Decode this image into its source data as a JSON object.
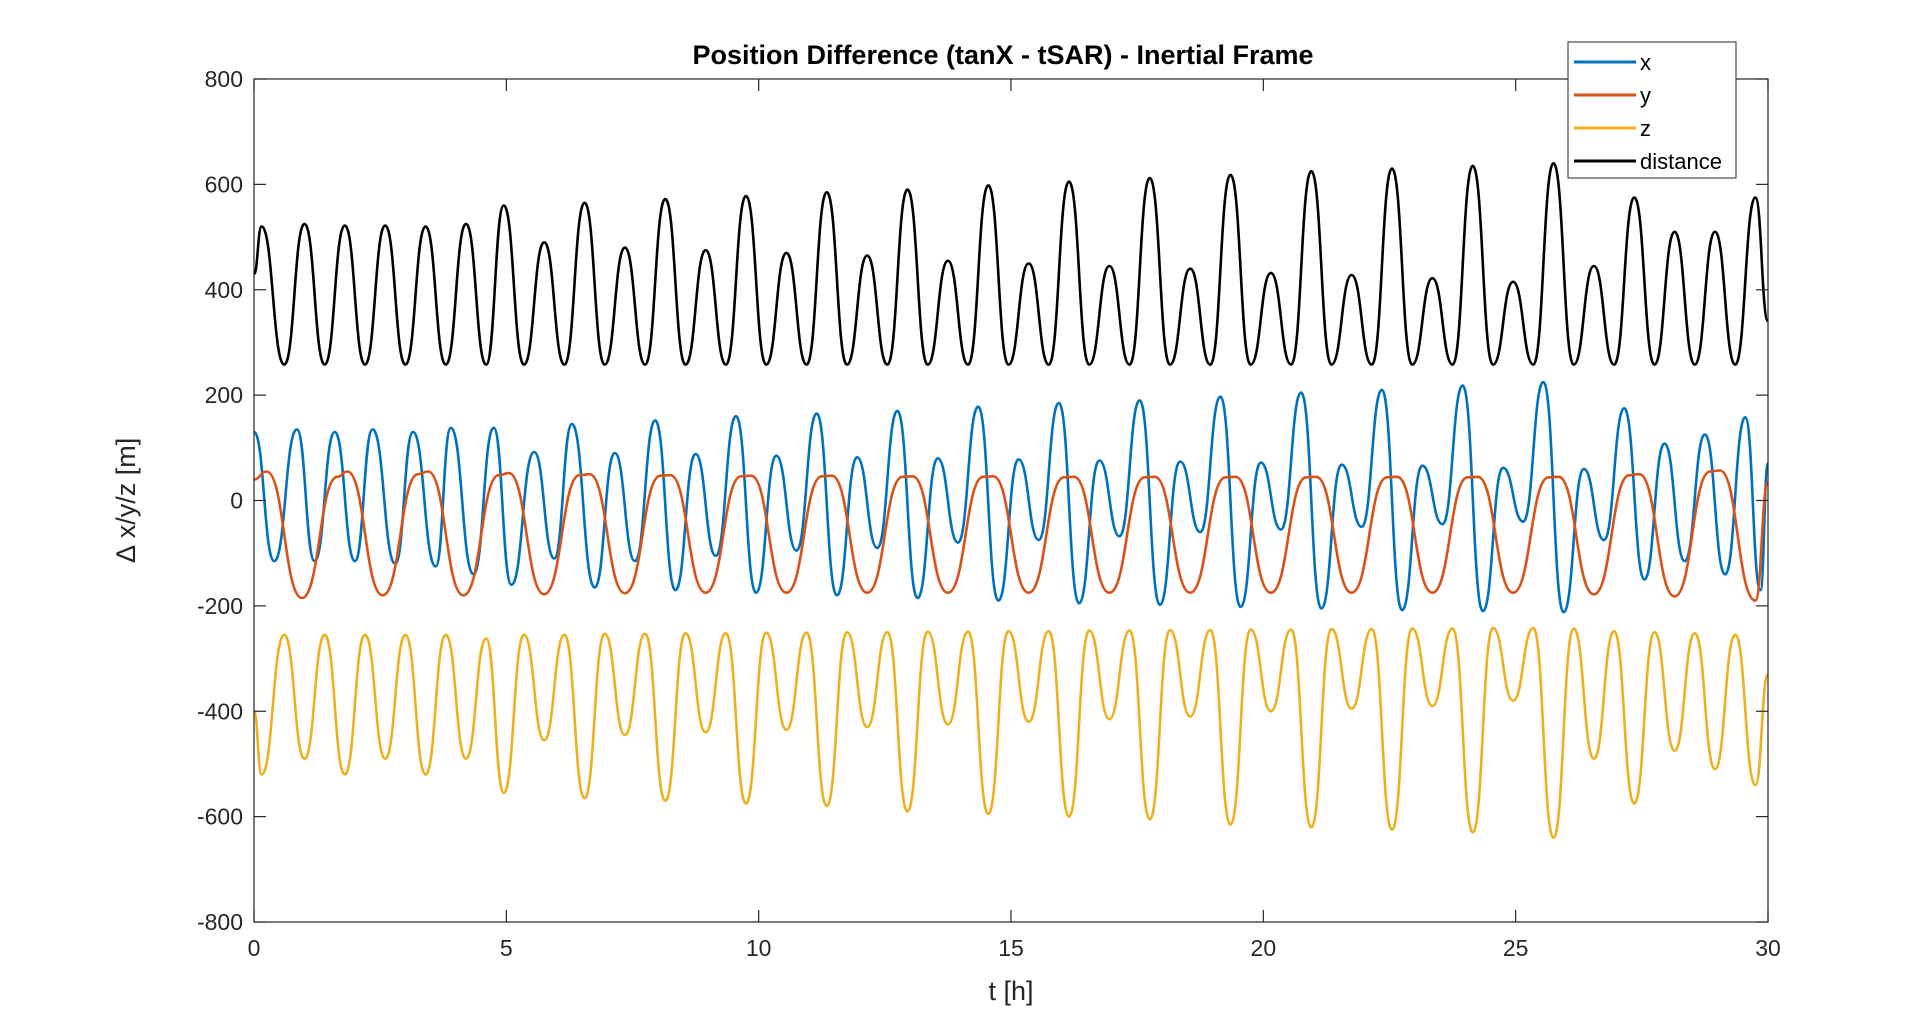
{
  "chart_data": {
    "type": "line",
    "title": "Position Difference (tanX - tSAR) - Inertial Frame",
    "xlabel": "t [h]",
    "ylabel": "∆ x/y/z [m]",
    "xlim": [
      0,
      30
    ],
    "ylim": [
      -800,
      800
    ],
    "x_ticks": [
      0,
      5,
      10,
      15,
      20,
      25,
      30
    ],
    "y_ticks": [
      -800,
      -600,
      -400,
      -200,
      0,
      200,
      400,
      600,
      800
    ],
    "grid": false,
    "legend_position": "top-right",
    "series": [
      {
        "name": "x",
        "color": "#0072BD",
        "points": [
          [
            0.0,
            130
          ],
          [
            0.4,
            -115
          ],
          [
            0.85,
            135
          ],
          [
            1.2,
            -115
          ],
          [
            1.6,
            130
          ],
          [
            2.0,
            -115
          ],
          [
            2.35,
            135
          ],
          [
            2.8,
            -120
          ],
          [
            3.15,
            130
          ],
          [
            3.6,
            -125
          ],
          [
            3.9,
            138
          ],
          [
            4.35,
            -140
          ],
          [
            4.75,
            138
          ],
          [
            5.1,
            -160
          ],
          [
            5.55,
            92
          ],
          [
            5.95,
            -110
          ],
          [
            6.3,
            145
          ],
          [
            6.75,
            -165
          ],
          [
            7.15,
            90
          ],
          [
            7.55,
            -115
          ],
          [
            7.95,
            152
          ],
          [
            8.35,
            -170
          ],
          [
            8.75,
            88
          ],
          [
            9.15,
            -105
          ],
          [
            9.55,
            160
          ],
          [
            9.95,
            -175
          ],
          [
            10.35,
            85
          ],
          [
            10.75,
            -95
          ],
          [
            11.15,
            165
          ],
          [
            11.55,
            -180
          ],
          [
            11.95,
            82
          ],
          [
            12.35,
            -90
          ],
          [
            12.75,
            170
          ],
          [
            13.15,
            -185
          ],
          [
            13.55,
            80
          ],
          [
            13.95,
            -80
          ],
          [
            14.35,
            178
          ],
          [
            14.75,
            -190
          ],
          [
            15.15,
            78
          ],
          [
            15.55,
            -75
          ],
          [
            15.95,
            185
          ],
          [
            16.35,
            -195
          ],
          [
            16.75,
            76
          ],
          [
            17.15,
            -68
          ],
          [
            17.55,
            190
          ],
          [
            17.95,
            -198
          ],
          [
            18.35,
            74
          ],
          [
            18.75,
            -60
          ],
          [
            19.15,
            197
          ],
          [
            19.55,
            -202
          ],
          [
            19.95,
            72
          ],
          [
            20.35,
            -55
          ],
          [
            20.75,
            205
          ],
          [
            21.15,
            -205
          ],
          [
            21.55,
            68
          ],
          [
            21.95,
            -50
          ],
          [
            22.35,
            210
          ],
          [
            22.75,
            -208
          ],
          [
            23.15,
            66
          ],
          [
            23.55,
            -45
          ],
          [
            23.95,
            218
          ],
          [
            24.35,
            -210
          ],
          [
            24.75,
            62
          ],
          [
            25.15,
            -40
          ],
          [
            25.55,
            225
          ],
          [
            25.95,
            -212
          ],
          [
            26.35,
            60
          ],
          [
            26.75,
            -75
          ],
          [
            27.15,
            175
          ],
          [
            27.55,
            -150
          ],
          [
            27.95,
            108
          ],
          [
            28.35,
            -115
          ],
          [
            28.75,
            125
          ],
          [
            29.15,
            -140
          ],
          [
            29.55,
            158
          ],
          [
            29.85,
            -170
          ],
          [
            30.0,
            70
          ]
        ]
      },
      {
        "name": "y",
        "color": "#D95319",
        "points": [
          [
            0.0,
            40
          ],
          [
            0.25,
            55
          ],
          [
            0.95,
            -185
          ],
          [
            1.65,
            45
          ],
          [
            1.85,
            55
          ],
          [
            2.55,
            -180
          ],
          [
            3.25,
            50
          ],
          [
            3.45,
            55
          ],
          [
            4.15,
            -180
          ],
          [
            4.85,
            48
          ],
          [
            5.05,
            52
          ],
          [
            5.75,
            -178
          ],
          [
            6.45,
            48
          ],
          [
            6.65,
            50
          ],
          [
            7.35,
            -176
          ],
          [
            8.05,
            47
          ],
          [
            8.25,
            48
          ],
          [
            8.95,
            -175
          ],
          [
            9.65,
            46
          ],
          [
            9.85,
            47
          ],
          [
            10.55,
            -175
          ],
          [
            11.25,
            46
          ],
          [
            11.45,
            47
          ],
          [
            12.15,
            -175
          ],
          [
            12.85,
            45
          ],
          [
            13.05,
            46
          ],
          [
            13.75,
            -175
          ],
          [
            14.45,
            45
          ],
          [
            14.65,
            46
          ],
          [
            15.35,
            -175
          ],
          [
            16.05,
            44
          ],
          [
            16.25,
            45
          ],
          [
            16.95,
            -175
          ],
          [
            17.65,
            44
          ],
          [
            17.85,
            45
          ],
          [
            18.55,
            -175
          ],
          [
            19.25,
            44
          ],
          [
            19.45,
            45
          ],
          [
            20.15,
            -175
          ],
          [
            20.85,
            44
          ],
          [
            21.05,
            45
          ],
          [
            21.75,
            -175
          ],
          [
            22.45,
            44
          ],
          [
            22.65,
            45
          ],
          [
            23.35,
            -175
          ],
          [
            24.05,
            44
          ],
          [
            24.25,
            45
          ],
          [
            24.95,
            -175
          ],
          [
            25.65,
            44
          ],
          [
            25.85,
            45
          ],
          [
            26.55,
            -178
          ],
          [
            27.25,
            48
          ],
          [
            27.45,
            50
          ],
          [
            28.15,
            -182
          ],
          [
            28.85,
            55
          ],
          [
            29.05,
            57
          ],
          [
            29.75,
            -190
          ],
          [
            30.0,
            35
          ]
        ]
      },
      {
        "name": "z",
        "color": "#EDB120",
        "points": [
          [
            0.0,
            -400
          ],
          [
            0.15,
            -520
          ],
          [
            0.6,
            -255
          ],
          [
            1.0,
            -490
          ],
          [
            1.4,
            -255
          ],
          [
            1.8,
            -520
          ],
          [
            2.2,
            -255
          ],
          [
            2.6,
            -490
          ],
          [
            3.0,
            -255
          ],
          [
            3.4,
            -520
          ],
          [
            3.8,
            -255
          ],
          [
            4.2,
            -490
          ],
          [
            4.6,
            -262
          ],
          [
            4.95,
            -555
          ],
          [
            5.35,
            -255
          ],
          [
            5.75,
            -455
          ],
          [
            6.15,
            -255
          ],
          [
            6.55,
            -565
          ],
          [
            6.95,
            -253
          ],
          [
            7.35,
            -445
          ],
          [
            7.75,
            -253
          ],
          [
            8.15,
            -570
          ],
          [
            8.55,
            -252
          ],
          [
            8.95,
            -440
          ],
          [
            9.35,
            -252
          ],
          [
            9.75,
            -575
          ],
          [
            10.15,
            -251
          ],
          [
            10.55,
            -435
          ],
          [
            10.95,
            -251
          ],
          [
            11.35,
            -580
          ],
          [
            11.75,
            -250
          ],
          [
            12.15,
            -430
          ],
          [
            12.55,
            -250
          ],
          [
            12.95,
            -590
          ],
          [
            13.35,
            -249
          ],
          [
            13.75,
            -425
          ],
          [
            14.15,
            -249
          ],
          [
            14.55,
            -595
          ],
          [
            14.95,
            -248
          ],
          [
            15.35,
            -420
          ],
          [
            15.75,
            -248
          ],
          [
            16.15,
            -600
          ],
          [
            16.55,
            -247
          ],
          [
            16.95,
            -415
          ],
          [
            17.35,
            -247
          ],
          [
            17.75,
            -605
          ],
          [
            18.15,
            -246
          ],
          [
            18.55,
            -410
          ],
          [
            18.95,
            -246
          ],
          [
            19.35,
            -615
          ],
          [
            19.75,
            -245
          ],
          [
            20.15,
            -400
          ],
          [
            20.55,
            -245
          ],
          [
            20.95,
            -620
          ],
          [
            21.35,
            -244
          ],
          [
            21.75,
            -395
          ],
          [
            22.15,
            -244
          ],
          [
            22.55,
            -625
          ],
          [
            22.95,
            -243
          ],
          [
            23.35,
            -390
          ],
          [
            23.75,
            -243
          ],
          [
            24.15,
            -630
          ],
          [
            24.55,
            -242
          ],
          [
            24.95,
            -380
          ],
          [
            25.35,
            -242
          ],
          [
            25.75,
            -640
          ],
          [
            26.15,
            -243
          ],
          [
            26.55,
            -490
          ],
          [
            26.95,
            -248
          ],
          [
            27.35,
            -575
          ],
          [
            27.75,
            -250
          ],
          [
            28.15,
            -475
          ],
          [
            28.55,
            -252
          ],
          [
            28.95,
            -510
          ],
          [
            29.35,
            -255
          ],
          [
            29.75,
            -540
          ],
          [
            30.0,
            -330
          ]
        ]
      },
      {
        "name": "distance",
        "color": "#000000",
        "points": [
          [
            0.0,
            430
          ],
          [
            0.15,
            520
          ],
          [
            0.6,
            258
          ],
          [
            1.0,
            525
          ],
          [
            1.4,
            258
          ],
          [
            1.8,
            522
          ],
          [
            2.2,
            258
          ],
          [
            2.6,
            522
          ],
          [
            3.0,
            258
          ],
          [
            3.4,
            520
          ],
          [
            3.8,
            258
          ],
          [
            4.2,
            525
          ],
          [
            4.6,
            258
          ],
          [
            4.95,
            560
          ],
          [
            5.35,
            258
          ],
          [
            5.75,
            490
          ],
          [
            6.15,
            258
          ],
          [
            6.55,
            565
          ],
          [
            6.95,
            258
          ],
          [
            7.35,
            480
          ],
          [
            7.75,
            258
          ],
          [
            8.15,
            572
          ],
          [
            8.55,
            258
          ],
          [
            8.95,
            475
          ],
          [
            9.35,
            258
          ],
          [
            9.75,
            578
          ],
          [
            10.15,
            258
          ],
          [
            10.55,
            470
          ],
          [
            10.95,
            258
          ],
          [
            11.35,
            585
          ],
          [
            11.75,
            258
          ],
          [
            12.15,
            465
          ],
          [
            12.55,
            258
          ],
          [
            12.95,
            590
          ],
          [
            13.35,
            258
          ],
          [
            13.75,
            455
          ],
          [
            14.15,
            258
          ],
          [
            14.55,
            598
          ],
          [
            14.95,
            258
          ],
          [
            15.35,
            450
          ],
          [
            15.75,
            258
          ],
          [
            16.15,
            605
          ],
          [
            16.55,
            258
          ],
          [
            16.95,
            445
          ],
          [
            17.35,
            258
          ],
          [
            17.75,
            612
          ],
          [
            18.15,
            258
          ],
          [
            18.55,
            440
          ],
          [
            18.95,
            258
          ],
          [
            19.35,
            618
          ],
          [
            19.75,
            258
          ],
          [
            20.15,
            432
          ],
          [
            20.55,
            258
          ],
          [
            20.95,
            625
          ],
          [
            21.35,
            258
          ],
          [
            21.75,
            428
          ],
          [
            22.15,
            258
          ],
          [
            22.55,
            630
          ],
          [
            22.95,
            258
          ],
          [
            23.35,
            422
          ],
          [
            23.75,
            258
          ],
          [
            24.15,
            635
          ],
          [
            24.55,
            258
          ],
          [
            24.95,
            415
          ],
          [
            25.35,
            258
          ],
          [
            25.75,
            640
          ],
          [
            26.15,
            258
          ],
          [
            26.55,
            445
          ],
          [
            26.95,
            258
          ],
          [
            27.35,
            575
          ],
          [
            27.75,
            258
          ],
          [
            28.15,
            510
          ],
          [
            28.55,
            258
          ],
          [
            28.95,
            510
          ],
          [
            29.35,
            258
          ],
          [
            29.75,
            575
          ],
          [
            30.0,
            340
          ]
        ]
      }
    ]
  }
}
